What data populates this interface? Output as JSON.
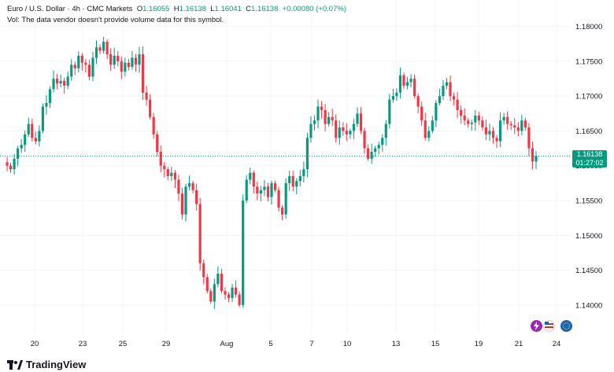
{
  "header": {
    "symbol": "Euro / U.S. Dollar · 4h · CMC Markets",
    "open_label": "O",
    "open": "1.16055",
    "high_label": "H",
    "high": "1.16138",
    "low_label": "L",
    "low": "1.16041",
    "close_label": "C",
    "close": "1.16138",
    "change": "+0.00080 (+0.07%)",
    "vol_note": "Vol: The data vendor doesn't provide volume data for this symbol."
  },
  "price_badge": {
    "price": "1.16138",
    "countdown": "01:27:02"
  },
  "brand": {
    "name": "TradingView"
  },
  "colors": {
    "up": "#089981",
    "down": "#f23645",
    "grid": "#f0f3fa",
    "text": "#131722"
  },
  "icons": [
    "flash-icon",
    "us-flag-icon",
    "eu-flag-icon"
  ],
  "chart_data": {
    "type": "candlestick",
    "title": "Euro / U.S. Dollar · 4h · CMC Markets",
    "xlabel": "",
    "ylabel": "",
    "ylim": [
      1.1358,
      1.1838
    ],
    "yticks": [
      "1.18000",
      "1.17500",
      "1.17000",
      "1.16500",
      "1.16000",
      "1.15500",
      "1.15000",
      "1.14500",
      "1.14000"
    ],
    "xticks": [
      "20",
      "23",
      "25",
      "29",
      "Aug",
      "5",
      "7",
      "10",
      "13",
      "15",
      "19",
      "21",
      "24"
    ],
    "current_price": 1.16138,
    "closes": [
      1.16,
      1.1595,
      1.161,
      1.1625,
      1.163,
      1.1645,
      1.166,
      1.164,
      1.1635,
      1.165,
      1.1685,
      1.169,
      1.171,
      1.1725,
      1.1718,
      1.1722,
      1.1715,
      1.1728,
      1.1745,
      1.174,
      1.1758,
      1.1748,
      1.1745,
      1.1728,
      1.1755,
      1.177,
      1.1765,
      1.1778,
      1.176,
      1.1745,
      1.1758,
      1.175,
      1.1735,
      1.1748,
      1.1742,
      1.1755,
      1.1745,
      1.176,
      1.1705,
      1.1695,
      1.167,
      1.1645,
      1.162,
      1.16,
      1.1595,
      1.1585,
      1.159,
      1.158,
      1.156,
      1.153,
      1.157,
      1.1575,
      1.1565,
      1.1545,
      1.146,
      1.144,
      1.142,
      1.1405,
      1.143,
      1.1445,
      1.142,
      1.1415,
      1.141,
      1.1425,
      1.1415,
      1.14,
      1.155,
      1.158,
      1.159,
      1.157,
      1.156,
      1.1565,
      1.157,
      1.1555,
      1.1575,
      1.1565,
      1.154,
      1.153,
      1.1575,
      1.1585,
      1.157,
      1.1578,
      1.1585,
      1.1595,
      1.164,
      1.166,
      1.1665,
      1.1685,
      1.168,
      1.166,
      1.167,
      1.1665,
      1.164,
      1.1655,
      1.165,
      1.1645,
      1.165,
      1.166,
      1.1675,
      1.165,
      1.1625,
      1.161,
      1.162,
      1.1625,
      1.163,
      1.164,
      1.166,
      1.1695,
      1.17,
      1.1705,
      1.173,
      1.1715,
      1.172,
      1.1725,
      1.17,
      1.1685,
      1.1665,
      1.164,
      1.165,
      1.1665,
      1.169,
      1.17,
      1.1715,
      1.172,
      1.17,
      1.1695,
      1.168,
      1.1672,
      1.1665,
      1.166,
      1.1662,
      1.1672,
      1.1665,
      1.1655,
      1.1645,
      1.165,
      1.164,
      1.1635,
      1.1665,
      1.167,
      1.166,
      1.1658,
      1.1655,
      1.165,
      1.1665,
      1.1655,
      1.1625,
      1.1606,
      1.1614
    ]
  }
}
